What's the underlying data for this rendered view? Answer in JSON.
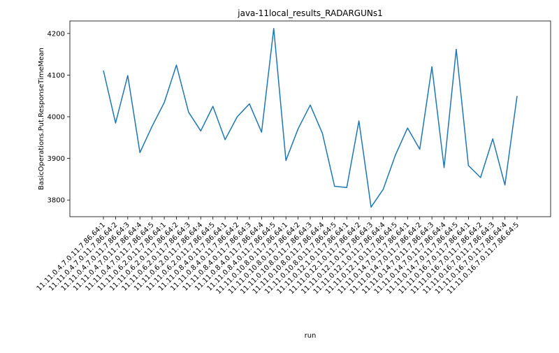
{
  "chart_data": {
    "type": "line",
    "title": "java-11local_results_RADARGUNs1",
    "xlabel": "run",
    "ylabel": "BasicOperations.Put.ResponseTimeMean",
    "ylim": [
      3760,
      4230
    ],
    "yticks": [
      3800,
      3900,
      4000,
      4100,
      4200
    ],
    "grid": false,
    "categories": [
      "11.11.0.4.7.0.11.7.86.64:1",
      "11.11.0.4.7.0.11.7.86.64:2",
      "11.11.0.4.7.0.11.7.86.64:3",
      "11.11.0.4.7.0.11.7.86.64:4",
      "11.11.0.4.7.0.11.7.86.64:5",
      "11.11.0.6.2.0.11.7.86.64:1",
      "11.11.0.6.2.0.11.7.86.64:2",
      "11.11.0.6.2.0.11.7.86.64:3",
      "11.11.0.6.2.0.11.7.86.64:4",
      "11.11.0.6.2.0.11.7.86.64:5",
      "11.11.0.8.4.0.11.7.86.64:1",
      "11.11.0.8.4.0.11.7.86.64:2",
      "11.11.0.8.4.0.11.7.86.64:3",
      "11.11.0.8.4.0.11.7.86.64:4",
      "11.11.0.8.4.0.11.7.86.64:5",
      "11.11.0.10.8.0.11.7.86.64:1",
      "11.11.0.10.8.0.11.7.86.64:2",
      "11.11.0.10.8.0.11.7.86.64:3",
      "11.11.0.10.8.0.11.7.86.64:4",
      "11.11.0.10.8.0.11.7.86.64:5",
      "11.11.0.12.1.0.11.7.86.64:1",
      "11.11.0.12.1.0.11.7.86.64:2",
      "11.11.0.12.1.0.11.7.86.64:3",
      "11.11.0.12.1.0.11.7.86.64:4",
      "11.11.0.12.1.0.11.7.86.64:5",
      "11.11.0.14.7.0.11.7.86.64:1",
      "11.11.0.14.7.0.11.7.86.64:2",
      "11.11.0.14.7.0.11.7.86.64:3",
      "11.11.0.14.7.0.11.7.86.64:4",
      "11.11.0.14.7.0.11.7.86.64:5",
      "11.11.0.16.7.0.11.7.86.64:1",
      "11.11.0.16.7.0.11.7.86.64:2",
      "11.11.0.16.7.0.11.7.86.64:3",
      "11.11.0.16.7.0.11.7.86.64:4",
      "11.11.0.16.7.0.11.7.86.64:5"
    ],
    "series": [
      {
        "color": "#1f77b4",
        "values": [
          4111,
          3985,
          4099,
          3914,
          3977,
          4034,
          4124,
          4011,
          3966,
          4025,
          3945,
          4000,
          4031,
          3963,
          4212,
          3895,
          3971,
          4028,
          3960,
          3833,
          3830,
          3990,
          3783,
          3826,
          3908,
          3973,
          3922,
          4120,
          3878,
          4162,
          3883,
          3854,
          3947,
          3836,
          4050
        ]
      }
    ]
  }
}
